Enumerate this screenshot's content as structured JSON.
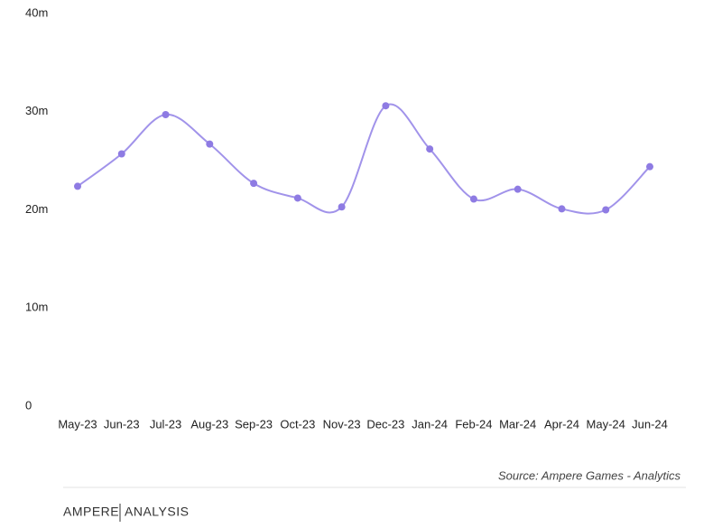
{
  "chart_data": {
    "type": "line",
    "categories": [
      "May-23",
      "Jun-23",
      "Jul-23",
      "Aug-23",
      "Sep-23",
      "Oct-23",
      "Nov-23",
      "Dec-23",
      "Jan-24",
      "Feb-24",
      "Mar-24",
      "Apr-24",
      "May-24",
      "Jun-24"
    ],
    "values": [
      22.4,
      25.7,
      29.7,
      26.7,
      22.7,
      21.2,
      20.3,
      30.6,
      26.2,
      21.1,
      22.1,
      20.1,
      20.0,
      24.4
    ],
    "color": "#a193ea",
    "marker_color": "#8e7be3",
    "ylim": [
      0,
      40
    ],
    "yticks": [
      0,
      {
        "value": 10,
        "label": "10m"
      },
      {
        "value": 20,
        "label": "20m"
      },
      {
        "value": 30,
        "label": "30m"
      },
      {
        "value": 40,
        "label": "40m"
      }
    ],
    "grid": false,
    "source": "Source: Ampere Games - Analytics",
    "brand": [
      "AMPERE",
      "ANALYSIS"
    ]
  }
}
